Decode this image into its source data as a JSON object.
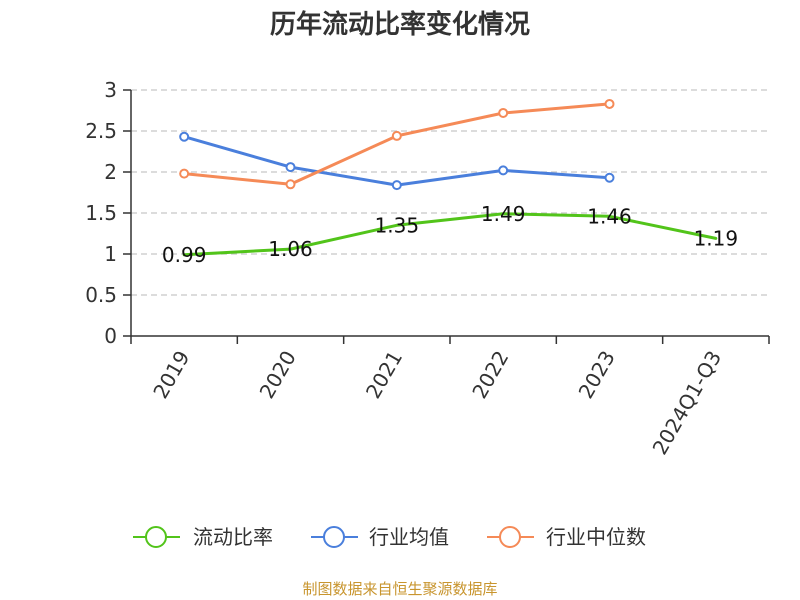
{
  "chart_data": {
    "type": "line",
    "title": "历年流动比率变化情况",
    "categories": [
      "2019",
      "2020",
      "2021",
      "2022",
      "2023",
      "2024Q1-Q3"
    ],
    "ylim": [
      0,
      3
    ],
    "yticks": [
      "0",
      "0.5",
      "1",
      "1.5",
      "2",
      "2.5",
      "3"
    ],
    "grid": true,
    "legend_position": "bottom",
    "series": [
      {
        "name": "流动比率",
        "color": "#52c41a",
        "values": [
          0.99,
          1.06,
          1.35,
          1.49,
          1.46,
          1.19
        ],
        "labels": [
          "0.99",
          "1.06",
          "1.35",
          "1.49",
          "1.46",
          "1.19"
        ],
        "markers": false
      },
      {
        "name": "行业均值",
        "color": "#4a7fdc",
        "values": [
          2.43,
          2.06,
          1.84,
          2.02,
          1.93,
          null
        ],
        "markers": true
      },
      {
        "name": "行业中位数",
        "color": "#f58a57",
        "values": [
          1.98,
          1.85,
          2.44,
          2.72,
          2.83,
          null
        ],
        "markers": true
      }
    ]
  },
  "source_text": "制图数据来自恒生聚源数据库"
}
